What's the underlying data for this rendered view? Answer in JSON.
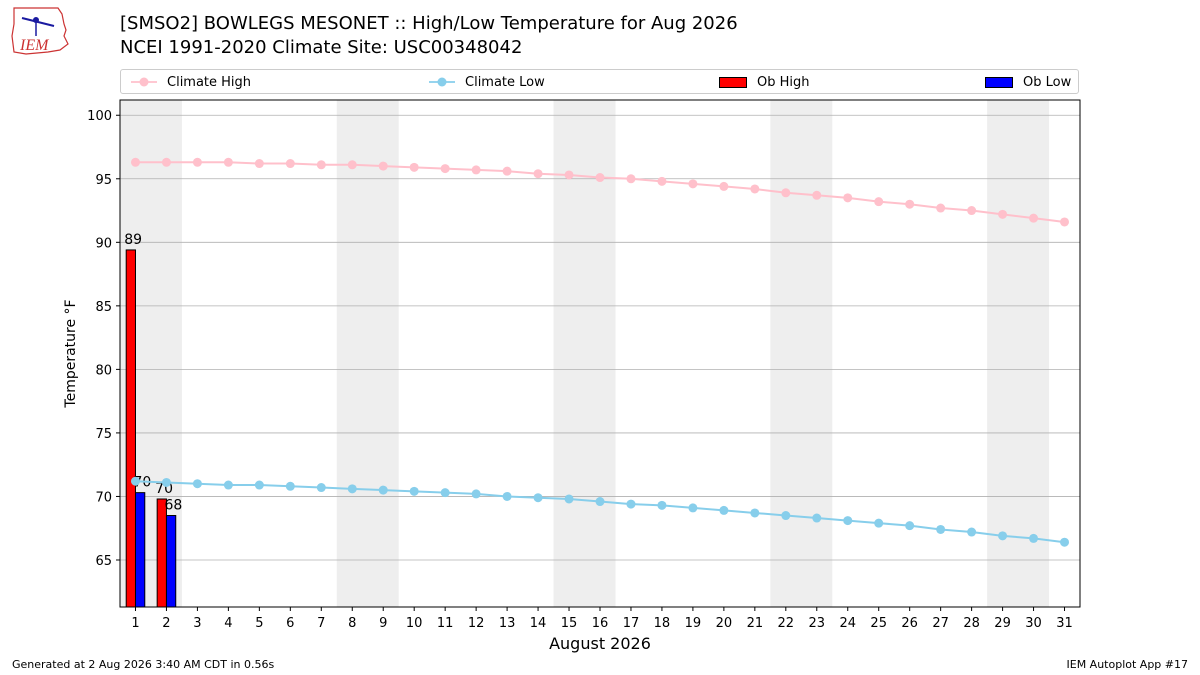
{
  "header": {
    "title_line1": "[SMSO2] BOWLEGS MESONET :: High/Low Temperature for Aug 2026",
    "title_line2": "NCEI 1991-2020 Climate Site: USC00348042",
    "logo_text": "IEM"
  },
  "legend": {
    "climate_high": "Climate High",
    "climate_low": "Climate Low",
    "ob_high": "Ob High",
    "ob_low": "Ob Low"
  },
  "footer": {
    "generated": "Generated at 2 Aug 2026 3:40 AM CDT in 0.56s",
    "app": "IEM Autoplot App #17"
  },
  "colors": {
    "climate_high": "#ffc0cb",
    "climate_low": "#87ceeb",
    "ob_high": "#ff0000",
    "ob_low": "#0000ff",
    "weekend_band": "#eeeeee",
    "grid": "#b0b0b0"
  },
  "chart_data": {
    "type": "bar",
    "xlabel": "August 2026",
    "ylabel": "Temperature °F",
    "xlim": [
      0.5,
      31.5
    ],
    "ylim": [
      61.3,
      101.2
    ],
    "yticks": [
      65,
      70,
      75,
      80,
      85,
      90,
      95,
      100
    ],
    "xticks": [
      1,
      2,
      3,
      4,
      5,
      6,
      7,
      8,
      9,
      10,
      11,
      12,
      13,
      14,
      15,
      16,
      17,
      18,
      19,
      20,
      21,
      22,
      23,
      24,
      25,
      26,
      27,
      28,
      29,
      30,
      31
    ],
    "grid": "horizontal",
    "legend_position": "top",
    "shaded_weekends": [
      [
        1,
        2
      ],
      [
        8,
        9
      ],
      [
        15,
        16
      ],
      [
        22,
        23
      ],
      [
        29,
        30
      ]
    ],
    "series": [
      {
        "name": "Climate High",
        "kind": "line",
        "x": [
          1,
          2,
          3,
          4,
          5,
          6,
          7,
          8,
          9,
          10,
          11,
          12,
          13,
          14,
          15,
          16,
          17,
          18,
          19,
          20,
          21,
          22,
          23,
          24,
          25,
          26,
          27,
          28,
          29,
          30,
          31
        ],
        "values": [
          96.3,
          96.3,
          96.3,
          96.3,
          96.2,
          96.2,
          96.1,
          96.1,
          96.0,
          95.9,
          95.8,
          95.7,
          95.6,
          95.4,
          95.3,
          95.1,
          95.0,
          94.8,
          94.6,
          94.4,
          94.2,
          93.9,
          93.7,
          93.5,
          93.2,
          93.0,
          92.7,
          92.5,
          92.2,
          91.9,
          91.6
        ]
      },
      {
        "name": "Climate Low",
        "kind": "line",
        "x": [
          1,
          2,
          3,
          4,
          5,
          6,
          7,
          8,
          9,
          10,
          11,
          12,
          13,
          14,
          15,
          16,
          17,
          18,
          19,
          20,
          21,
          22,
          23,
          24,
          25,
          26,
          27,
          28,
          29,
          30,
          31
        ],
        "values": [
          71.2,
          71.1,
          71.0,
          70.9,
          70.9,
          70.8,
          70.7,
          70.6,
          70.5,
          70.4,
          70.3,
          70.2,
          70.0,
          69.9,
          69.8,
          69.6,
          69.4,
          69.3,
          69.1,
          68.9,
          68.7,
          68.5,
          68.3,
          68.1,
          67.9,
          67.7,
          67.4,
          67.2,
          66.9,
          66.7,
          66.4
        ]
      },
      {
        "name": "Ob High",
        "kind": "bar",
        "x": [
          1,
          2
        ],
        "values": [
          89.4,
          69.8
        ],
        "labels": [
          "89",
          "70"
        ]
      },
      {
        "name": "Ob Low",
        "kind": "bar",
        "x": [
          1,
          2
        ],
        "values": [
          70.3,
          68.5
        ],
        "labels": [
          "70",
          "68"
        ]
      }
    ]
  }
}
